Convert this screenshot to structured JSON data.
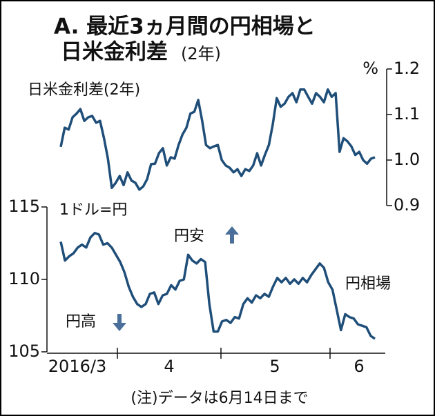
{
  "title_lines": [
    "A. 最近3ヵ月間の円相場と",
    "日米金利差",
    "(2年)"
  ],
  "note": "(注)データは6月14日まで",
  "chart_data": [
    {
      "type": "line",
      "label": "日米金利差(2年)",
      "unit": "%",
      "axis": "right",
      "color": "#1f4e79",
      "ylim": [
        0.9,
        1.2
      ],
      "yticks": [
        0.9,
        {
          "value": 1,
          "label": "1.0"
        },
        1.1,
        1.2
      ],
      "values": [
        1.029,
        1.071,
        1.067,
        1.094,
        1.102,
        1.112,
        1.086,
        1.094,
        1.097,
        1.082,
        1.086,
        1.048,
        1.003,
        0.939,
        0.95,
        0.965,
        0.945,
        0.973,
        0.955,
        0.95,
        0.935,
        0.942,
        0.958,
        0.991,
        0.992,
        1.015,
        1.026,
        0.988,
        1.006,
        1.003,
        1.033,
        1.056,
        1.071,
        1.102,
        1.106,
        1.132,
        1.086,
        1.033,
        1.026,
        1.03,
        1.033,
        1.0,
        0.988,
        0.983,
        0.973,
        0.98,
        0.965,
        0.98,
        0.976,
        0.988,
        1.015,
        0.988,
        1.012,
        1.033,
        1.079,
        1.136,
        1.117,
        1.124,
        1.139,
        1.147,
        1.127,
        1.155,
        1.155,
        1.139,
        1.124,
        1.147,
        1.139,
        1.127,
        1.155,
        1.139,
        1.147,
        1.018,
        1.048,
        1.041,
        1.03,
        1.011,
        1.018,
        1.0,
        0.992,
        1.003,
        1.006
      ]
    },
    {
      "type": "line",
      "label": "円相場",
      "unit": "1ドル=円",
      "axis": "left",
      "color": "#1f4e79",
      "ylim": [
        105,
        115
      ],
      "yticks": [
        105,
        110,
        115
      ],
      "x_labels": [
        "2016/3",
        "4",
        "5",
        "6"
      ],
      "annotations": [
        "円安",
        "円高"
      ],
      "values": [
        112.6,
        111.3,
        111.6,
        111.8,
        112.2,
        112.4,
        112.2,
        112.9,
        113.2,
        113.1,
        112.4,
        112.5,
        112.2,
        111.7,
        111.2,
        110.5,
        109.5,
        108.8,
        108.3,
        108.1,
        108.3,
        109.0,
        109.1,
        108.3,
        108.9,
        109.0,
        109.6,
        109.3,
        109.9,
        110.0,
        111.7,
        111.3,
        111.1,
        111.4,
        111.2,
        108.3,
        106.4,
        106.4,
        107.1,
        107.2,
        107.0,
        107.4,
        107.3,
        108.3,
        108.7,
        108.4,
        108.9,
        108.7,
        109.0,
        108.8,
        109.5,
        110.1,
        109.8,
        110.1,
        109.7,
        110.0,
        109.7,
        110.1,
        109.8,
        110.3,
        110.7,
        111.1,
        110.8,
        109.8,
        109.3,
        107.9,
        106.5,
        107.6,
        107.4,
        107.3,
        106.9,
        106.8,
        106.7,
        106.1,
        105.9
      ]
    }
  ]
}
